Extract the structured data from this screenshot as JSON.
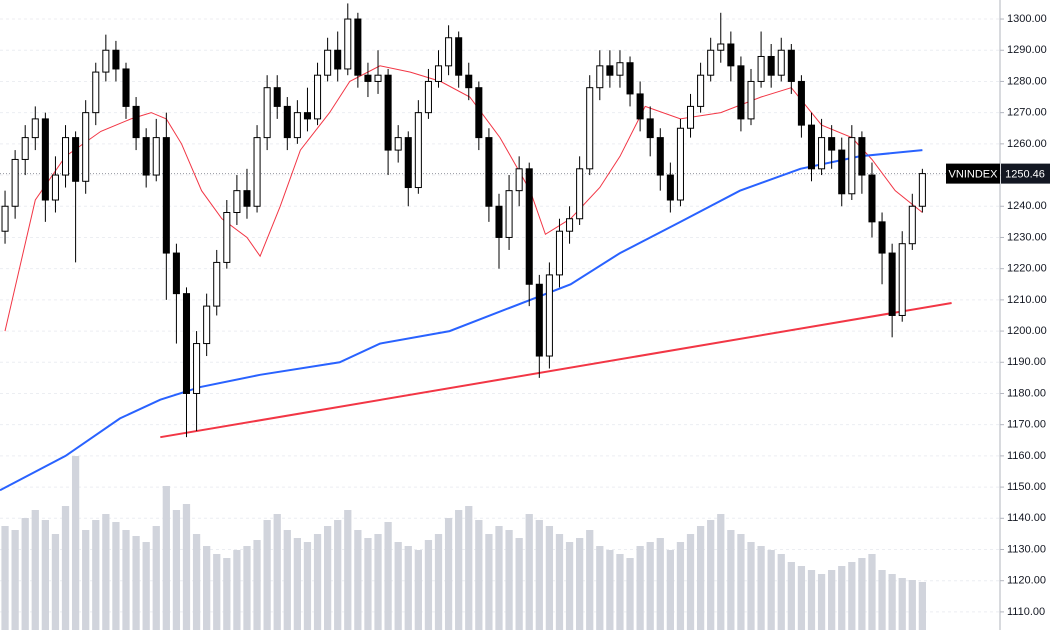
{
  "chart_data": {
    "type": "candlestick",
    "symbol": "VNINDEX",
    "last_price": 1250.46,
    "up_color": "#ffffff",
    "down_color": "#000000",
    "volume_color": "#d1d4dc",
    "xlim": [
      -0.5,
      98.7
    ],
    "ylim": [
      1104.2,
      1306.1
    ],
    "volume_ylim": [
      0,
      100
    ],
    "grid": true,
    "yticks": [
      {
        "value": 1110,
        "label": "1110.00"
      },
      {
        "value": 1120,
        "label": "1120.00"
      },
      {
        "value": 1130,
        "label": "1130.00"
      },
      {
        "value": 1140,
        "label": "1140.00"
      },
      {
        "value": 1150,
        "label": "1150.00"
      },
      {
        "value": 1160,
        "label": "1160.00"
      },
      {
        "value": 1170,
        "label": "1170.00"
      },
      {
        "value": 1180,
        "label": "1180.00"
      },
      {
        "value": 1190,
        "label": "1190.00"
      },
      {
        "value": 1200,
        "label": "1200.00"
      },
      {
        "value": 1210,
        "label": "1210.00"
      },
      {
        "value": 1220,
        "label": "1220.00"
      },
      {
        "value": 1230,
        "label": "1230.00"
      },
      {
        "value": 1240,
        "label": "1240.00"
      },
      {
        "value": 1250,
        "label": "1250.00"
      },
      {
        "value": 1260,
        "label": "1260.00"
      },
      {
        "value": 1270,
        "label": "1270.00"
      },
      {
        "value": 1280,
        "label": "1280.00"
      },
      {
        "value": 1290,
        "label": "1290.00"
      },
      {
        "value": 1300,
        "label": "1300.00"
      }
    ],
    "ohlc": [
      [
        1232,
        1245,
        1228,
        1240
      ],
      [
        1240,
        1258,
        1236,
        1255
      ],
      [
        1255,
        1266,
        1250,
        1262
      ],
      [
        1262,
        1272,
        1258,
        1268
      ],
      [
        1268,
        1270,
        1235,
        1242
      ],
      [
        1242,
        1256,
        1238,
        1250
      ],
      [
        1250,
        1266,
        1246,
        1262
      ],
      [
        1262,
        1264,
        1222,
        1248
      ],
      [
        1248,
        1274,
        1244,
        1270
      ],
      [
        1270,
        1286,
        1266,
        1283
      ],
      [
        1283,
        1295,
        1280,
        1290
      ],
      [
        1290,
        1293,
        1280,
        1284
      ],
      [
        1284,
        1286,
        1268,
        1272
      ],
      [
        1272,
        1275,
        1258,
        1262
      ],
      [
        1262,
        1265,
        1246,
        1250
      ],
      [
        1250,
        1268,
        1248,
        1262
      ],
      [
        1262,
        1270,
        1210,
        1225
      ],
      [
        1225,
        1228,
        1196,
        1212
      ],
      [
        1212,
        1214,
        1166,
        1180
      ],
      [
        1180,
        1200,
        1168,
        1196
      ],
      [
        1196,
        1212,
        1192,
        1208
      ],
      [
        1208,
        1226,
        1205,
        1222
      ],
      [
        1222,
        1242,
        1220,
        1238
      ],
      [
        1238,
        1250,
        1234,
        1245
      ],
      [
        1245,
        1252,
        1236,
        1240
      ],
      [
        1240,
        1266,
        1238,
        1262
      ],
      [
        1262,
        1282,
        1258,
        1278
      ],
      [
        1278,
        1282,
        1268,
        1272
      ],
      [
        1272,
        1275,
        1258,
        1262
      ],
      [
        1262,
        1274,
        1260,
        1270
      ],
      [
        1270,
        1278,
        1264,
        1268
      ],
      [
        1268,
        1286,
        1266,
        1282
      ],
      [
        1282,
        1294,
        1280,
        1290
      ],
      [
        1290,
        1296,
        1280,
        1284
      ],
      [
        1284,
        1305,
        1282,
        1300
      ],
      [
        1300,
        1302,
        1278,
        1282
      ],
      [
        1282,
        1286,
        1275,
        1280
      ],
      [
        1280,
        1290,
        1276,
        1282
      ],
      [
        1282,
        1284,
        1250,
        1258
      ],
      [
        1258,
        1266,
        1254,
        1262
      ],
      [
        1262,
        1264,
        1240,
        1246
      ],
      [
        1246,
        1274,
        1244,
        1270
      ],
      [
        1270,
        1284,
        1268,
        1280
      ],
      [
        1280,
        1290,
        1278,
        1285
      ],
      [
        1285,
        1298,
        1282,
        1294
      ],
      [
        1294,
        1296,
        1278,
        1282
      ],
      [
        1282,
        1286,
        1274,
        1278
      ],
      [
        1278,
        1280,
        1258,
        1262
      ],
      [
        1262,
        1265,
        1235,
        1240
      ],
      [
        1240,
        1244,
        1220,
        1230
      ],
      [
        1230,
        1250,
        1226,
        1245
      ],
      [
        1245,
        1256,
        1240,
        1252
      ],
      [
        1252,
        1254,
        1208,
        1215
      ],
      [
        1215,
        1218,
        1185,
        1192
      ],
      [
        1192,
        1222,
        1188,
        1218
      ],
      [
        1218,
        1236,
        1214,
        1232
      ],
      [
        1232,
        1240,
        1228,
        1236
      ],
      [
        1236,
        1256,
        1234,
        1252
      ],
      [
        1252,
        1282,
        1250,
        1278
      ],
      [
        1278,
        1290,
        1274,
        1285
      ],
      [
        1285,
        1290,
        1278,
        1282
      ],
      [
        1282,
        1290,
        1278,
        1286
      ],
      [
        1286,
        1288,
        1272,
        1276
      ],
      [
        1276,
        1280,
        1264,
        1268
      ],
      [
        1268,
        1272,
        1256,
        1262
      ],
      [
        1262,
        1265,
        1245,
        1250
      ],
      [
        1250,
        1254,
        1238,
        1242
      ],
      [
        1242,
        1268,
        1240,
        1265
      ],
      [
        1265,
        1276,
        1262,
        1272
      ],
      [
        1272,
        1286,
        1270,
        1282
      ],
      [
        1282,
        1294,
        1280,
        1290
      ],
      [
        1290,
        1302,
        1286,
        1292
      ],
      [
        1292,
        1296,
        1280,
        1285
      ],
      [
        1285,
        1288,
        1264,
        1268
      ],
      [
        1268,
        1284,
        1266,
        1280
      ],
      [
        1280,
        1296,
        1278,
        1288
      ],
      [
        1288,
        1292,
        1278,
        1282
      ],
      [
        1282,
        1294,
        1280,
        1290
      ],
      [
        1290,
        1292,
        1276,
        1280
      ],
      [
        1280,
        1282,
        1262,
        1266
      ],
      [
        1266,
        1270,
        1248,
        1252
      ],
      [
        1252,
        1268,
        1250,
        1262
      ],
      [
        1262,
        1266,
        1252,
        1258
      ],
      [
        1258,
        1262,
        1240,
        1244
      ],
      [
        1244,
        1266,
        1242,
        1262
      ],
      [
        1262,
        1264,
        1244,
        1250
      ],
      [
        1250,
        1254,
        1230,
        1235
      ],
      [
        1235,
        1238,
        1215,
        1225
      ],
      [
        1225,
        1228,
        1198,
        1205
      ],
      [
        1205,
        1232,
        1203,
        1228
      ],
      [
        1228,
        1244,
        1226,
        1240
      ],
      [
        1240,
        1252,
        1238,
        1250.46
      ]
    ],
    "volume": [
      52,
      50,
      56,
      60,
      55,
      48,
      62,
      87,
      50,
      55,
      58,
      54,
      50,
      47,
      44,
      52,
      72,
      60,
      63,
      48,
      42,
      38,
      36,
      40,
      42,
      45,
      55,
      58,
      50,
      46,
      44,
      48,
      52,
      55,
      60,
      50,
      46,
      48,
      54,
      44,
      42,
      40,
      45,
      48,
      56,
      60,
      62,
      55,
      48,
      52,
      50,
      46,
      58,
      55,
      52,
      48,
      44,
      46,
      50,
      42,
      40,
      38,
      36,
      42,
      44,
      46,
      40,
      44,
      48,
      52,
      55,
      58,
      50,
      48,
      44,
      42,
      40,
      38,
      34,
      32,
      30,
      28,
      30,
      32,
      34,
      36,
      38,
      30,
      28,
      26,
      25,
      24
    ],
    "lines": [
      {
        "color": "#f23645",
        "width": 1,
        "x": [
          0,
          3,
          6,
          9.5,
          12.5,
          14.5,
          16,
          17.5,
          19.5,
          21.5,
          24,
          25.3,
          27.3,
          29.3,
          32.2,
          34.2,
          37.2,
          40.2,
          43.2,
          46.1,
          49.1,
          52.1,
          53.6,
          56.1,
          59,
          61,
          63.5,
          67,
          71,
          75,
          78,
          81,
          84,
          86,
          88.3,
          91
        ],
        "values": [
          1200,
          1242,
          1256,
          1264,
          1268,
          1270,
          1268,
          1260,
          1245,
          1236,
          1230,
          1224,
          1240,
          1258,
          1270,
          1280,
          1285,
          1283,
          1280,
          1275,
          1262,
          1245,
          1231,
          1236,
          1246,
          1256,
          1272,
          1268,
          1270,
          1275,
          1278,
          1266,
          1262,
          1255,
          1245,
          1238
        ]
      },
      {
        "color": "#2962ff",
        "width": 2,
        "x": [
          -0.5,
          6,
          11.4,
          15.4,
          19.3,
          25.3,
          33.2,
          37.2,
          44.1,
          52.1,
          56.1,
          61,
          67,
          72.9,
          78.9,
          84.8,
          91
        ],
        "values": [
          1149,
          1160,
          1172,
          1178,
          1182,
          1186,
          1190,
          1196,
          1200,
          1210,
          1215,
          1225,
          1235,
          1245,
          1252,
          1256,
          1258
        ]
      },
      {
        "color": "#f23645",
        "width": 2,
        "x": [
          15.4,
          93.9
        ],
        "values": [
          1166,
          1209
        ]
      }
    ]
  }
}
